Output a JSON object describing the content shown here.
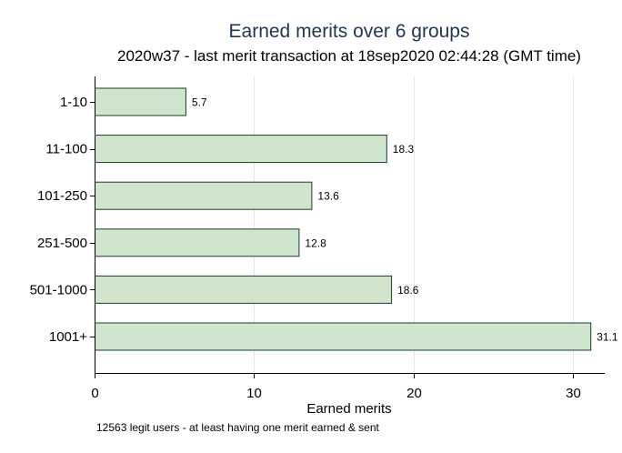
{
  "chart_data": {
    "type": "bar",
    "orientation": "horizontal",
    "title": "Earned merits over 6 groups",
    "subtitle": "2020w37 - last merit transaction at 18sep2020 02:44:28 (GMT time)",
    "categories": [
      "1-10",
      "11-100",
      "101-250",
      "251-500",
      "501-1000",
      "1001+"
    ],
    "values": [
      5.7,
      18.3,
      13.6,
      12.8,
      18.6,
      31.1
    ],
    "value_labels": [
      "5.7",
      "18.3",
      "13.6",
      "12.8",
      "18.6",
      "31.1"
    ],
    "xlabel": "Earned merits",
    "ylabel": "",
    "xlim": [
      0,
      32
    ],
    "xticks": [
      0,
      10,
      20,
      30
    ],
    "xtick_labels": [
      "0",
      "10",
      "20",
      "30"
    ],
    "note": "12563 legit users - at least having one merit earned & sent",
    "grid": true,
    "legend": "none",
    "colors": {
      "bar_fill": "#cfe6cc",
      "bar_edge": "#1a3c2a",
      "title": "#1f3556"
    }
  }
}
